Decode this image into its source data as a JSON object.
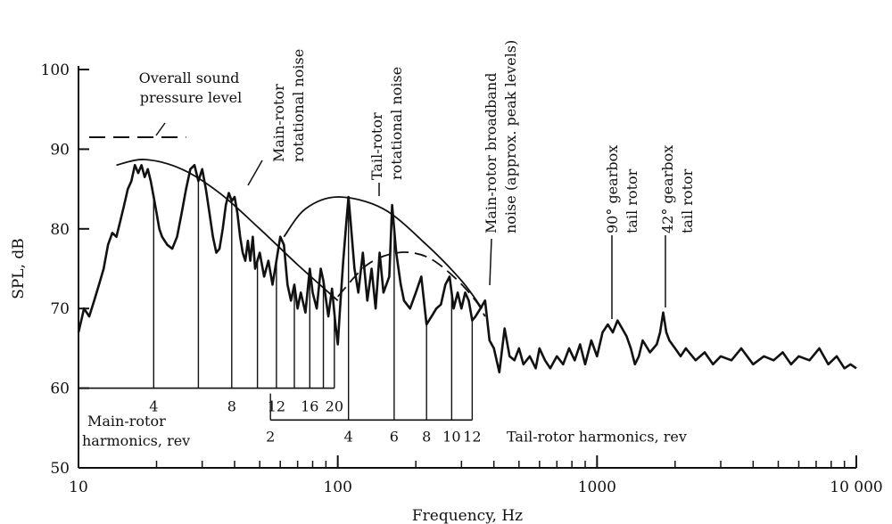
{
  "chart_data": {
    "type": "line",
    "xlabel": "Frequency, Hz",
    "ylabel": "SPL, dB",
    "xscale": "log",
    "xlim": [
      10,
      10000
    ],
    "ylim": [
      50,
      100
    ],
    "x_ticks": [
      {
        "value": 10,
        "label": "10"
      },
      {
        "value": 100,
        "label": "100"
      },
      {
        "value": 1000,
        "label": "1000"
      },
      {
        "value": 10000,
        "label": "10 000"
      }
    ],
    "y_ticks": [
      {
        "value": 50,
        "label": "50"
      },
      {
        "value": 60,
        "label": "60"
      },
      {
        "value": 70,
        "label": "70"
      },
      {
        "value": 80,
        "label": "80"
      },
      {
        "value": 90,
        "label": "90"
      },
      {
        "value": 100,
        "label": "100"
      }
    ],
    "grid": false,
    "legend": "none",
    "spectrum_points": [
      [
        10,
        67
      ],
      [
        10.5,
        70
      ],
      [
        11,
        69
      ],
      [
        11.5,
        71
      ],
      [
        12,
        73
      ],
      [
        12.5,
        75
      ],
      [
        13,
        78
      ],
      [
        13.5,
        79.5
      ],
      [
        14,
        79
      ],
      [
        14.5,
        81
      ],
      [
        15,
        83
      ],
      [
        15.5,
        85
      ],
      [
        16,
        86
      ],
      [
        16.5,
        88
      ],
      [
        17,
        87
      ],
      [
        17.5,
        88
      ],
      [
        18,
        86.5
      ],
      [
        18.5,
        87.5
      ],
      [
        19,
        86
      ],
      [
        19.5,
        84
      ],
      [
        20,
        82
      ],
      [
        20.5,
        80
      ],
      [
        21,
        79
      ],
      [
        22,
        78
      ],
      [
        23,
        77.5
      ],
      [
        24,
        79
      ],
      [
        25,
        82
      ],
      [
        26,
        85
      ],
      [
        27,
        87.5
      ],
      [
        28,
        88
      ],
      [
        29,
        86
      ],
      [
        30,
        87.5
      ],
      [
        31,
        85
      ],
      [
        32,
        82
      ],
      [
        33,
        79
      ],
      [
        34,
        77
      ],
      [
        35,
        77.5
      ],
      [
        36,
        80
      ],
      [
        37,
        83
      ],
      [
        38,
        84.5
      ],
      [
        39,
        83.5
      ],
      [
        40,
        84
      ],
      [
        41,
        82
      ],
      [
        42,
        79
      ],
      [
        43,
        77
      ],
      [
        44,
        76
      ],
      [
        45,
        78.5
      ],
      [
        46,
        76
      ],
      [
        47,
        79
      ],
      [
        48,
        75
      ],
      [
        50,
        77
      ],
      [
        52,
        74
      ],
      [
        54,
        76
      ],
      [
        56,
        73
      ],
      [
        58,
        76
      ],
      [
        60,
        79
      ],
      [
        62,
        78
      ],
      [
        64,
        73
      ],
      [
        66,
        71
      ],
      [
        68,
        73
      ],
      [
        70,
        70
      ],
      [
        72,
        72
      ],
      [
        75,
        69.5
      ],
      [
        78,
        75
      ],
      [
        80,
        72
      ],
      [
        83,
        70
      ],
      [
        86,
        75
      ],
      [
        88,
        73.5
      ],
      [
        92,
        69
      ],
      [
        95,
        72.5
      ],
      [
        98,
        68
      ],
      [
        100,
        65.5
      ],
      [
        102,
        70
      ],
      [
        105,
        76
      ],
      [
        108,
        81
      ],
      [
        110,
        84
      ],
      [
        112,
        81
      ],
      [
        116,
        75
      ],
      [
        120,
        72
      ],
      [
        125,
        77
      ],
      [
        130,
        71
      ],
      [
        135,
        75
      ],
      [
        140,
        70
      ],
      [
        145,
        77
      ],
      [
        150,
        72
      ],
      [
        158,
        74
      ],
      [
        162,
        83
      ],
      [
        168,
        77
      ],
      [
        175,
        73
      ],
      [
        180,
        71
      ],
      [
        190,
        70
      ],
      [
        200,
        72
      ],
      [
        210,
        74
      ],
      [
        220,
        68
      ],
      [
        230,
        69
      ],
      [
        240,
        70
      ],
      [
        250,
        70.5
      ],
      [
        260,
        73
      ],
      [
        270,
        74
      ],
      [
        280,
        70
      ],
      [
        290,
        72
      ],
      [
        300,
        70
      ],
      [
        310,
        72
      ],
      [
        320,
        71
      ],
      [
        330,
        68.5
      ],
      [
        340,
        69
      ],
      [
        355,
        70
      ],
      [
        370,
        71
      ],
      [
        385,
        66
      ],
      [
        400,
        65
      ],
      [
        420,
        62
      ],
      [
        440,
        67.5
      ],
      [
        460,
        64
      ],
      [
        480,
        63.5
      ],
      [
        500,
        65
      ],
      [
        520,
        63
      ],
      [
        550,
        64
      ],
      [
        580,
        62.5
      ],
      [
        600,
        65
      ],
      [
        630,
        63.5
      ],
      [
        660,
        62.5
      ],
      [
        700,
        64
      ],
      [
        740,
        63
      ],
      [
        780,
        65
      ],
      [
        820,
        63.5
      ],
      [
        860,
        65.5
      ],
      [
        900,
        63
      ],
      [
        950,
        66
      ],
      [
        1000,
        64
      ],
      [
        1050,
        67
      ],
      [
        1100,
        68
      ],
      [
        1150,
        67
      ],
      [
        1200,
        68.5
      ],
      [
        1250,
        67.5
      ],
      [
        1300,
        66.5
      ],
      [
        1350,
        65
      ],
      [
        1400,
        63
      ],
      [
        1450,
        64
      ],
      [
        1500,
        66
      ],
      [
        1600,
        64.5
      ],
      [
        1700,
        65.5
      ],
      [
        1750,
        67
      ],
      [
        1800,
        69.5
      ],
      [
        1850,
        67
      ],
      [
        1900,
        66
      ],
      [
        2000,
        65
      ],
      [
        2100,
        64
      ],
      [
        2200,
        65
      ],
      [
        2400,
        63.5
      ],
      [
        2600,
        64.5
      ],
      [
        2800,
        63
      ],
      [
        3000,
        64
      ],
      [
        3300,
        63.5
      ],
      [
        3600,
        65
      ],
      [
        4000,
        63
      ],
      [
        4400,
        64
      ],
      [
        4800,
        63.5
      ],
      [
        5200,
        64.5
      ],
      [
        5600,
        63
      ],
      [
        6000,
        64
      ],
      [
        6600,
        63.5
      ],
      [
        7200,
        65
      ],
      [
        7800,
        63
      ],
      [
        8400,
        64
      ],
      [
        9000,
        62.5
      ],
      [
        9500,
        63
      ],
      [
        10000,
        62.5
      ]
    ],
    "main_rotor_envelope": [
      [
        14,
        88
      ],
      [
        18,
        88.7
      ],
      [
        25,
        87.5
      ],
      [
        35,
        84.5
      ],
      [
        50,
        80
      ],
      [
        70,
        75.5
      ],
      [
        100,
        71
      ]
    ],
    "tail_rotor_envelope": [
      [
        62,
        79
      ],
      [
        75,
        82.5
      ],
      [
        100,
        84
      ],
      [
        150,
        82.5
      ],
      [
        220,
        78
      ],
      [
        300,
        73.5
      ],
      [
        360,
        70
      ]
    ],
    "broadband_envelope": [
      [
        100,
        71.5
      ],
      [
        130,
        75.5
      ],
      [
        170,
        77
      ],
      [
        220,
        76.5
      ],
      [
        280,
        74
      ],
      [
        340,
        71
      ],
      [
        370,
        69
      ]
    ],
    "overall_spl_line": {
      "x_start": 11,
      "x_end": 26,
      "value": 91.5
    },
    "main_rotor_harmonics": [
      {
        "label": "4",
        "x": 19.5
      },
      {
        "label": "",
        "x": 29
      },
      {
        "label": "8",
        "x": 39
      },
      {
        "label": "",
        "x": 49
      },
      {
        "label": "12",
        "x": 58
      },
      {
        "label": "",
        "x": 68
      },
      {
        "label": "16",
        "x": 78
      },
      {
        "label": "",
        "x": 88
      },
      {
        "label": "20",
        "x": 97
      }
    ],
    "tail_rotor_harmonics": [
      {
        "label": "2",
        "x": 55
      },
      {
        "label": "4",
        "x": 110
      },
      {
        "label": "6",
        "x": 165
      },
      {
        "label": "8",
        "x": 220
      },
      {
        "label": "10",
        "x": 275
      },
      {
        "label": "12",
        "x": 330
      }
    ],
    "harmonics_baseline_main_db": 60,
    "harmonics_baseline_tail_db": 56,
    "main_rotor_harmonics_title": [
      "Main-rotor",
      "harmonics, rev"
    ],
    "tail_rotor_harmonics_title": "Tail-rotor harmonics, rev",
    "annotations": {
      "overall": [
        "Overall sound",
        "pressure level"
      ],
      "main_rotor_rotational": [
        "Main-rotor",
        "rotational noise"
      ],
      "tail_rotor_rotational": [
        "Tail-rotor",
        "rotational noise"
      ],
      "broadband": [
        "Main-rotor broadband",
        "noise (approx. peak levels)"
      ],
      "gearbox_90": [
        "90° gearbox",
        "tail rotor"
      ],
      "gearbox_42": [
        "42° gearbox",
        "tail rotor"
      ]
    }
  }
}
